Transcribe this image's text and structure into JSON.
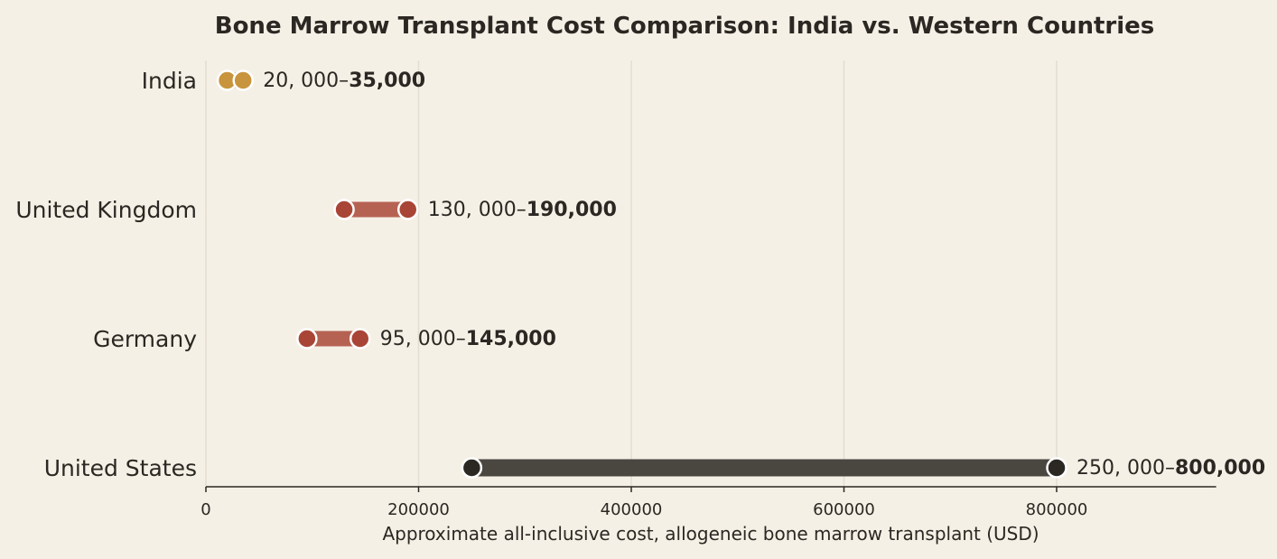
{
  "chart_data": {
    "type": "dumbbell",
    "title": "Bone Marrow Transplant Cost Comparison: India vs. Western Countries",
    "xlabel": "Approximate all-inclusive cost, allogeneic bone marrow transplant (USD)",
    "ylabel": "",
    "xlim": [
      0,
      950000
    ],
    "xticks": [
      0,
      200000,
      400000,
      600000,
      800000
    ],
    "xtick_labels": [
      "0",
      "200000",
      "400000",
      "600000",
      "800000"
    ],
    "grid": "vertical",
    "rows": [
      {
        "category": "India",
        "low": 20000,
        "high": 35000,
        "label_low": "20, 000–",
        "label_high": "35,000",
        "color": "#c8943d",
        "bar_color": "#c8943d"
      },
      {
        "category": "United Kingdom",
        "low": 130000,
        "high": 190000,
        "label_low": "130, 000–",
        "label_high": "190,000",
        "color": "#a94536",
        "bar_color": "#b66253"
      },
      {
        "category": "Germany",
        "low": 95000,
        "high": 145000,
        "label_low": "95, 000–",
        "label_high": "145,000",
        "color": "#a94536",
        "bar_color": "#b66253"
      },
      {
        "category": "United States",
        "low": 250000,
        "high": 800000,
        "label_low": "250, 000–",
        "label_high": "800,000",
        "color": "#2b2722",
        "bar_color": "#4a4640"
      }
    ]
  }
}
